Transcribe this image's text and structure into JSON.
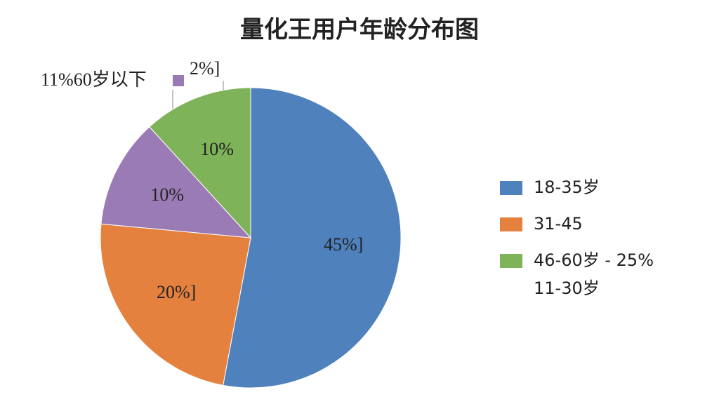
{
  "chart_data": {
    "type": "pie",
    "title": "量化王用户年龄分布图",
    "values": [
      45,
      20,
      10,
      10
    ],
    "value_labels": [
      "45%]",
      "20%]",
      "10%",
      "10%"
    ],
    "colors": [
      "#4f81bd",
      "#e5813e",
      "#9b7bb6",
      "#7fb35a"
    ],
    "legend": [
      {
        "name": "18-35岁",
        "color": "#4f81bd"
      },
      {
        "name": "31-45",
        "color": "#e5813e"
      },
      {
        "name": "46-60岁 - 25%",
        "color": "#7fb35a"
      }
    ],
    "legend_note": "11-30岁",
    "annotations": [
      "11%60岁以下",
      "2%]"
    ]
  }
}
